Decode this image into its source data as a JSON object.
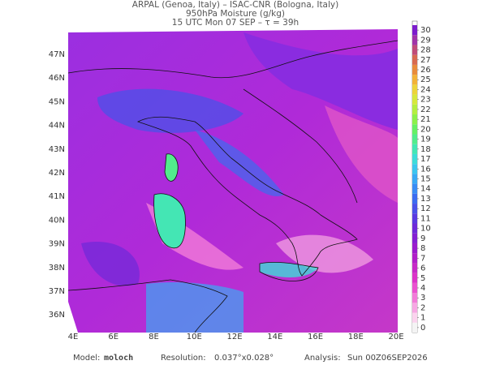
{
  "header": {
    "lines": [
      "ARPAL (Genoa, Italy)  –  ISAC-CNR (Bologna, Italy)",
      "950hPa Moisture (g/kg)",
      "15 UTC Mon 07 SEP  –  τ = 39h"
    ]
  },
  "map": {
    "lat_labels": [
      "47N",
      "46N",
      "45N",
      "44N",
      "43N",
      "42N",
      "41N",
      "40N",
      "39N",
      "38N",
      "37N",
      "36N"
    ],
    "lon_labels": [
      "4E",
      "6E",
      "8E",
      "10E",
      "12E",
      "14E",
      "16E",
      "18E",
      "20E"
    ]
  },
  "colorbar": {
    "ticks": [
      0,
      1,
      2,
      3,
      4,
      5,
      6,
      7,
      8,
      9,
      10,
      11,
      12,
      13,
      14,
      15,
      16,
      17,
      18,
      19,
      20,
      21,
      22,
      23,
      24,
      25,
      26,
      27,
      28,
      29,
      30
    ],
    "colors": [
      "#f4f4f4",
      "#fbd3ee",
      "#f7a8e3",
      "#f27cd8",
      "#ea52cf",
      "#dc34c8",
      "#c72ac6",
      "#b020c8",
      "#9a1ccc",
      "#8420d2",
      "#6e2ad8",
      "#5a3ae0",
      "#4a52e8",
      "#3c6cf0",
      "#3a8cf4",
      "#3aaaf4",
      "#3cc6ee",
      "#3edcd8",
      "#44e6b4",
      "#52ec8c",
      "#66f064",
      "#8cf04a",
      "#b4ee40",
      "#d6e83c",
      "#ecd43a",
      "#f2b238",
      "#e88c3c",
      "#d86a50",
      "#c04c78",
      "#a034a8",
      "#7c1ccc"
    ]
  },
  "footer": {
    "model_label": "Model:",
    "model": "moloch",
    "resolution_label": "Resolution:",
    "resolution": "0.037°x0.028°",
    "analysis_label": "Analysis:",
    "analysis": "Sun 00Z06SEP2026"
  }
}
